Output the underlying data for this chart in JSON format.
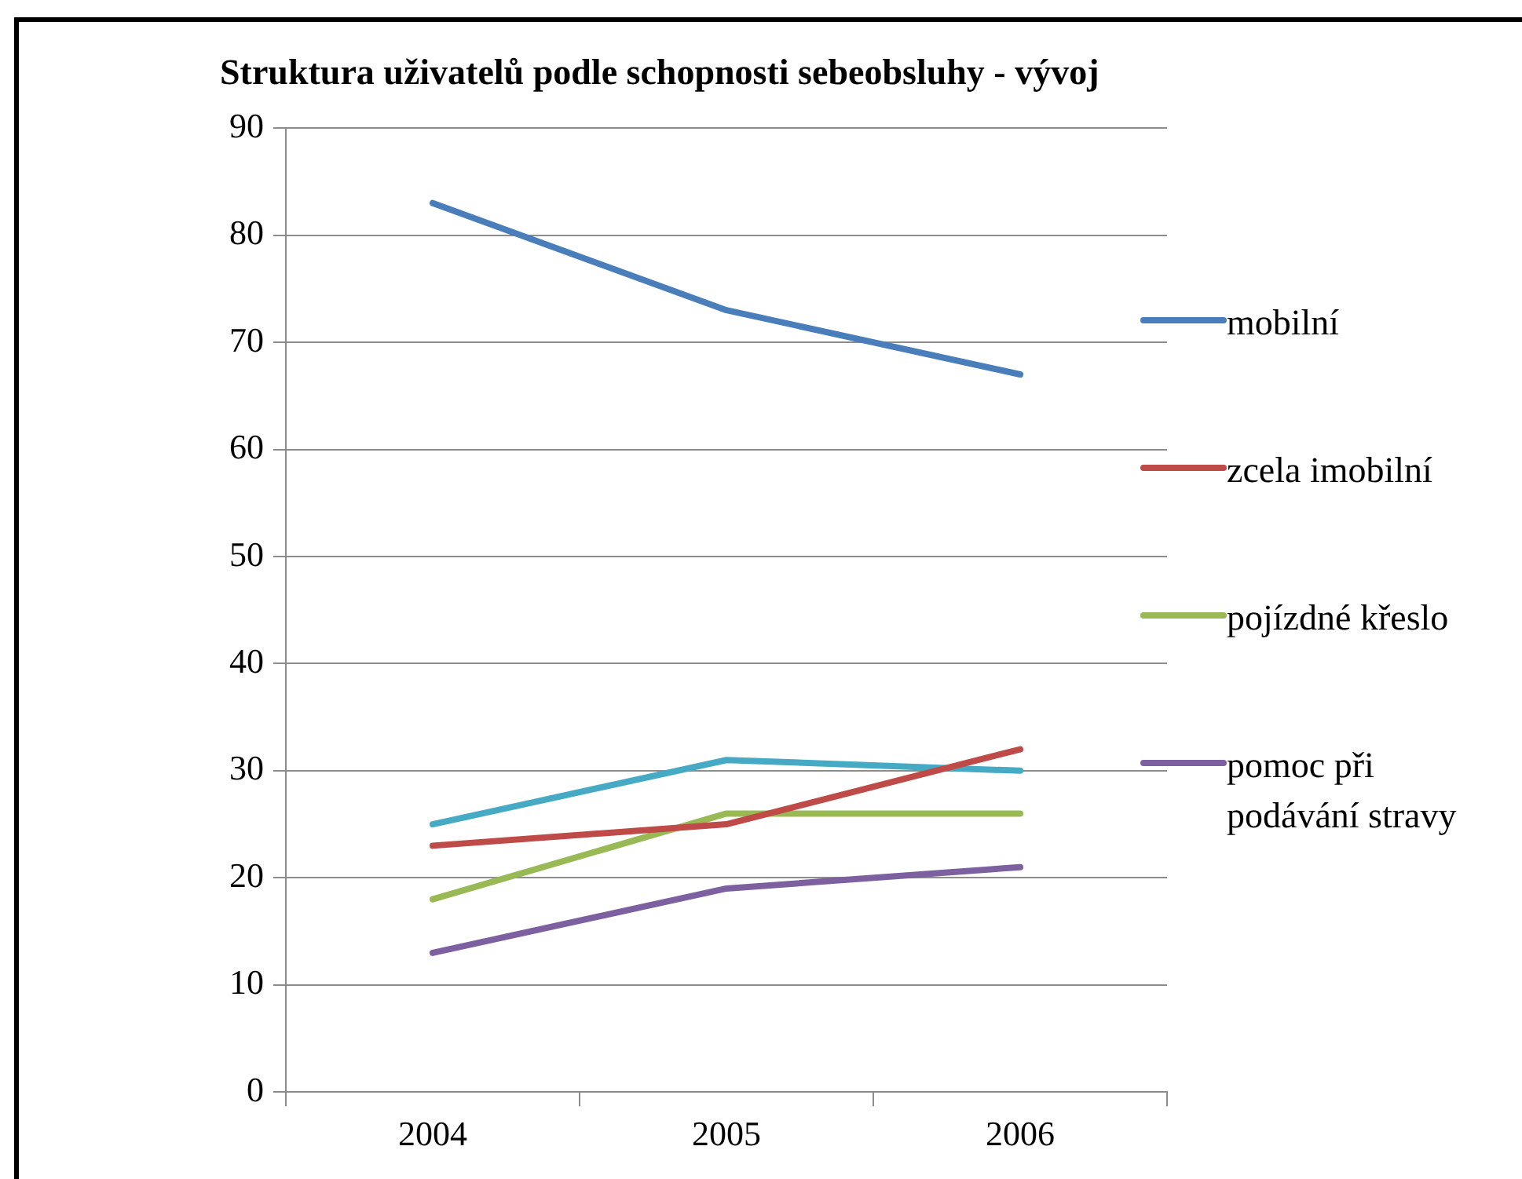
{
  "chart_data": {
    "type": "line",
    "title": "Struktura uživatelů podle schopnosti sebeobsluhy - vývoj",
    "categories": [
      "2004",
      "2005",
      "2006"
    ],
    "series": [
      {
        "name": "mobilní",
        "color": "#4a7ebb",
        "values": [
          83,
          73,
          67
        ]
      },
      {
        "name": "zcela imobilní",
        "color": "#be4b48",
        "values": [
          23,
          25,
          32
        ]
      },
      {
        "name": "pojízdné křeslo",
        "color": "#98b954",
        "values": [
          18,
          26,
          26
        ]
      },
      {
        "name": "pomoc při podávání stravy",
        "color": "#7d60a0",
        "values": [
          13,
          19,
          21
        ]
      },
      {
        "color": "#46aac5",
        "values": [
          25,
          31,
          30
        ]
      }
    ],
    "ylim": [
      0,
      90
    ],
    "yticks": [
      0,
      10,
      20,
      30,
      40,
      50,
      60,
      70,
      80,
      90
    ],
    "grid": "y",
    "legend": "right",
    "marker": "none",
    "line_style": "solid"
  }
}
